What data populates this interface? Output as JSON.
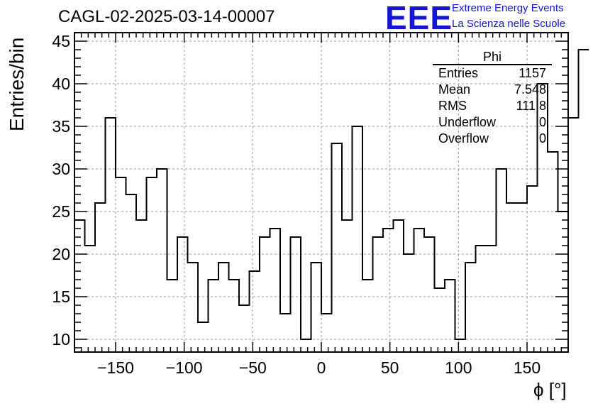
{
  "title": "CAGL-02-2025-03-14-00007",
  "logo": {
    "mark": "EEE",
    "line1": "Extreme Energy Events",
    "line2": "La Scienza nelle Scuole",
    "color": "#1414dc"
  },
  "stats": {
    "name": "Phi",
    "rows": [
      {
        "label": "Entries",
        "value": "1157"
      },
      {
        "label": "Mean",
        "value": "7.548"
      },
      {
        "label": "RMS",
        "value": "111.8"
      },
      {
        "label": "Underflow",
        "value": "0"
      },
      {
        "label": "Overflow",
        "value": "0"
      }
    ]
  },
  "chart_data": {
    "type": "bar",
    "style": "step-histogram",
    "title": "CAGL-02-2025-03-14-00007",
    "xlabel": "ϕ [°]",
    "ylabel": "Entries/bin",
    "xlim": [
      -180,
      180
    ],
    "ylim": [
      8.5,
      46
    ],
    "bin_width": 7.5,
    "x_ticks": [
      "−150",
      "−100",
      "−50",
      "0",
      "50",
      "100",
      "150"
    ],
    "x_tick_values": [
      -150,
      -100,
      -50,
      0,
      50,
      100,
      150
    ],
    "y_ticks": [
      "10",
      "15",
      "20",
      "25",
      "30",
      "35",
      "40",
      "45"
    ],
    "y_tick_values": [
      10,
      15,
      20,
      25,
      30,
      35,
      40,
      45
    ],
    "grid": true,
    "values": [
      24,
      21,
      26,
      36,
      29,
      27,
      24,
      29,
      30,
      17,
      22,
      19,
      12,
      17,
      19,
      17,
      14,
      18,
      22,
      23,
      13,
      22,
      10,
      19,
      13,
      33,
      24,
      35,
      17,
      22,
      23,
      24,
      20,
      23,
      22,
      16,
      17,
      10,
      19,
      21,
      21,
      30,
      26,
      26,
      28,
      40,
      32,
      25,
      36,
      44
    ]
  }
}
